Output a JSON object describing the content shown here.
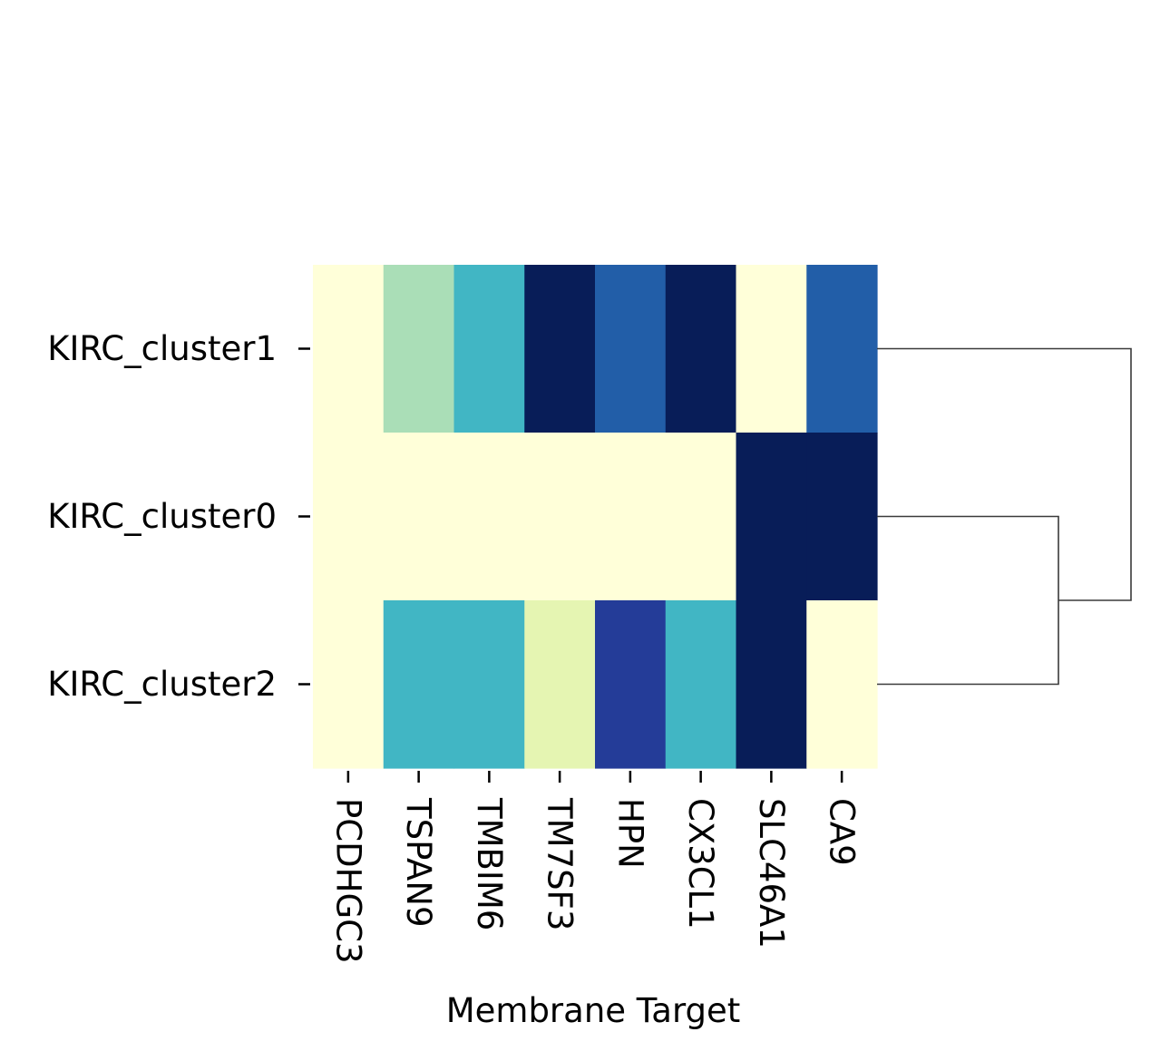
{
  "chart_data": {
    "type": "heatmap",
    "title": "",
    "xlabel": "Membrane Target",
    "ylabel": "",
    "columns": [
      "PCDHGC3",
      "TSPAN9",
      "TMBIM6",
      "TM7SF3",
      "HPN",
      "CX3CL1",
      "SLC46A1",
      "CA9"
    ],
    "rows": [
      "KIRC_cluster1",
      "KIRC_cluster0",
      "KIRC_cluster2"
    ],
    "values": [
      [
        0.0,
        0.3,
        0.5,
        1.0,
        0.75,
        1.0,
        0.0,
        0.75
      ],
      [
        0.0,
        0.0,
        0.0,
        0.0,
        0.0,
        0.0,
        1.0,
        1.0
      ],
      [
        0.0,
        0.5,
        0.5,
        0.15,
        0.85,
        0.5,
        1.0,
        0.0
      ]
    ],
    "value_range": [
      0,
      1
    ],
    "colormap": [
      "#ffffd9",
      "#edf8b1",
      "#c7e9b4",
      "#7fcdbb",
      "#41b6c4",
      "#1d91c0",
      "#225ea8",
      "#253494",
      "#081d58"
    ],
    "colorbar": false,
    "row_dendrogram": {
      "side": "right",
      "linkage": [
        {
          "left": "KIRC_cluster0",
          "right": "KIRC_cluster2",
          "height": 1
        },
        {
          "left": "KIRC_cluster1",
          "right": "cluster0+cluster2",
          "height": 1.4
        }
      ]
    }
  }
}
